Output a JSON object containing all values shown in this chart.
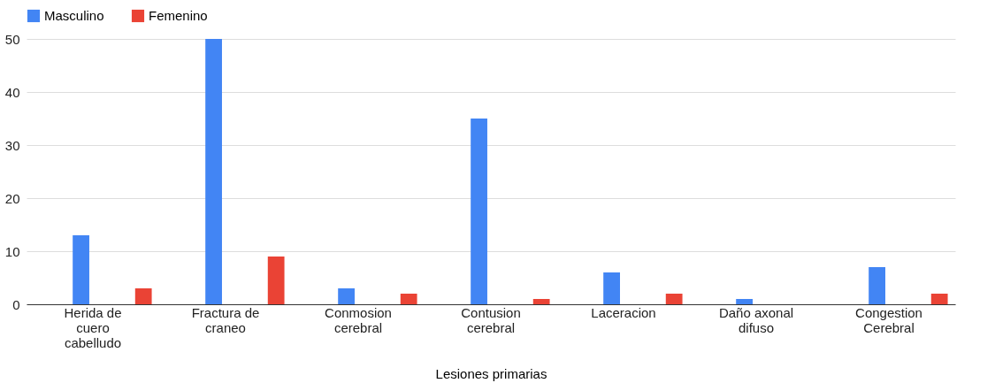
{
  "chart_data": {
    "type": "bar",
    "xlabel": "Lesiones primarias",
    "categories": [
      "Herida de cuero cabelludo",
      "Fractura de craneo",
      "Conmosion cerebral",
      "Contusion cerebral",
      "Laceracion",
      "Daño axonal difuso",
      "Congestion Cerebral"
    ],
    "series": [
      {
        "name": "Masculino",
        "color": "#4285f4",
        "values": [
          13,
          50,
          3,
          35,
          6,
          1,
          7
        ]
      },
      {
        "name": "Femenino",
        "color": "#ea4335",
        "values": [
          3,
          9,
          2,
          1,
          2,
          0,
          2
        ]
      }
    ],
    "ylim": [
      0,
      50
    ],
    "yticks": [
      0,
      10,
      20,
      30,
      40,
      50
    ],
    "grid": "y",
    "legend": "top"
  }
}
